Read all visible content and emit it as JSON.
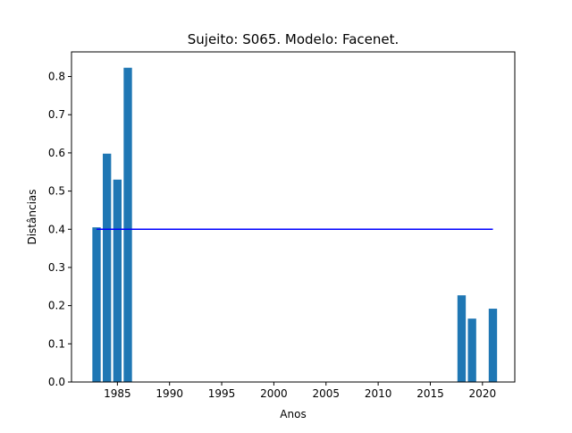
{
  "chart_data": {
    "type": "bar",
    "title": "Sujeito: S065. Modelo: Facenet.",
    "xlabel": "Anos",
    "ylabel": "Distâncias",
    "x": [
      1983,
      1984,
      1985,
      1986,
      2018,
      2019,
      2021
    ],
    "values": [
      0.405,
      0.598,
      0.53,
      0.823,
      0.227,
      0.166,
      0.192
    ],
    "bar_color": "#1f77b4",
    "xlim": [
      1980.6,
      2023.1
    ],
    "ylim": [
      0,
      0.8645
    ],
    "xticks": [
      1985,
      1990,
      1995,
      2000,
      2005,
      2010,
      2015,
      2020
    ],
    "xtick_labels": [
      "1985",
      "1990",
      "1995",
      "2000",
      "2005",
      "2010",
      "2015",
      "2020"
    ],
    "yticks": [
      0.0,
      0.1,
      0.2,
      0.3,
      0.4,
      0.5,
      0.6,
      0.7,
      0.8
    ],
    "ytick_labels": [
      "0.0",
      "0.1",
      "0.2",
      "0.3",
      "0.4",
      "0.5",
      "0.6",
      "0.7",
      "0.8"
    ],
    "threshold": {
      "y": 0.4,
      "x_start": 1983,
      "x_end": 2021,
      "color": "#0000ff"
    },
    "grid": false,
    "legend": "none"
  }
}
